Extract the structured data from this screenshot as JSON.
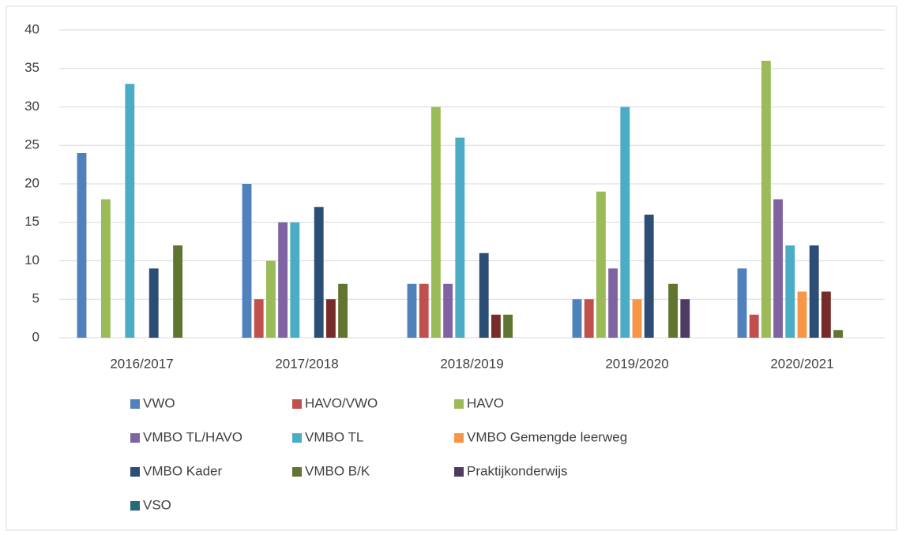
{
  "chart_data": {
    "type": "bar",
    "categories": [
      "2016/2017",
      "2017/2018",
      "2018/2019",
      "2019/2020",
      "2020/2021"
    ],
    "series": [
      {
        "name": "VWO",
        "color": "#4f81bd",
        "values": [
          24,
          20,
          7,
          5,
          9
        ]
      },
      {
        "name": "HAVO/VWO",
        "color": "#c0504d",
        "values": [
          null,
          5,
          7,
          5,
          3
        ]
      },
      {
        "name": "HAVO",
        "color": "#9bbb59",
        "values": [
          18,
          10,
          30,
          19,
          36
        ]
      },
      {
        "name": "VMBO TL/HAVO",
        "color": "#8064a2",
        "values": [
          null,
          15,
          7,
          9,
          18
        ]
      },
      {
        "name": "VMBO TL",
        "color": "#4bacc6",
        "values": [
          33,
          15,
          26,
          30,
          12
        ]
      },
      {
        "name": "VMBO Gemengde leerweg",
        "color": "#f79646",
        "values": [
          null,
          null,
          null,
          5,
          6
        ]
      },
      {
        "name": "VMBO Kader",
        "color": "#2c4d75",
        "values": [
          9,
          17,
          11,
          16,
          12
        ]
      },
      {
        "name": null,
        "color": "#772c2a",
        "values": [
          null,
          5,
          3,
          null,
          6
        ]
      },
      {
        "name": "VMBO B/K",
        "color": "#5f7530",
        "values": [
          12,
          7,
          3,
          7,
          1
        ]
      },
      {
        "name": "Praktijkonderwijs",
        "color": "#4d3b62",
        "values": [
          null,
          null,
          null,
          5,
          null
        ]
      },
      {
        "name": "VSO",
        "color": "#276a7c",
        "values": [
          null,
          null,
          null,
          null,
          null
        ]
      }
    ],
    "ylim": [
      0,
      40
    ],
    "yticks": [
      0,
      5,
      10,
      15,
      20,
      25,
      30,
      35,
      40
    ],
    "grid": true
  }
}
